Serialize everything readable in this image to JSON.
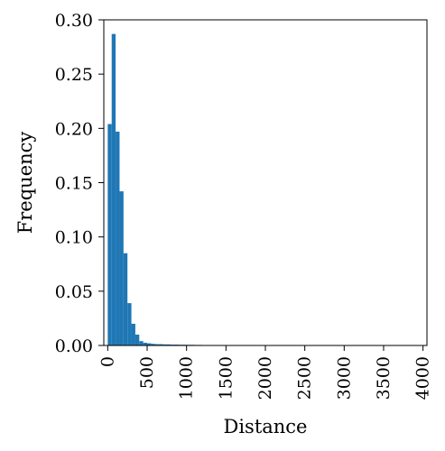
{
  "chart_data": {
    "type": "bar",
    "xlabel": "Distance",
    "ylabel": "Frequency",
    "xlim": [
      -50,
      4050
    ],
    "ylim": [
      0,
      0.3
    ],
    "bar_color": "#1f77b4",
    "bin_width": 50,
    "bins": [
      {
        "x0": 0,
        "x1": 50,
        "value": 0.204
      },
      {
        "x0": 50,
        "x1": 100,
        "value": 0.287
      },
      {
        "x0": 100,
        "x1": 150,
        "value": 0.197
      },
      {
        "x0": 150,
        "x1": 200,
        "value": 0.142
      },
      {
        "x0": 200,
        "x1": 250,
        "value": 0.085
      },
      {
        "x0": 250,
        "x1": 300,
        "value": 0.039
      },
      {
        "x0": 300,
        "x1": 350,
        "value": 0.02
      },
      {
        "x0": 350,
        "x1": 400,
        "value": 0.01
      },
      {
        "x0": 400,
        "x1": 450,
        "value": 0.004
      },
      {
        "x0": 450,
        "x1": 500,
        "value": 0.0025
      },
      {
        "x0": 500,
        "x1": 550,
        "value": 0.002
      },
      {
        "x0": 550,
        "x1": 600,
        "value": 0.0015
      },
      {
        "x0": 600,
        "x1": 650,
        "value": 0.0012
      },
      {
        "x0": 650,
        "x1": 700,
        "value": 0.0012
      },
      {
        "x0": 700,
        "x1": 750,
        "value": 0.001
      },
      {
        "x0": 750,
        "x1": 800,
        "value": 0.001
      },
      {
        "x0": 800,
        "x1": 850,
        "value": 0.0008
      },
      {
        "x0": 850,
        "x1": 900,
        "value": 0.0008
      },
      {
        "x0": 900,
        "x1": 950,
        "value": 0.0007
      },
      {
        "x0": 950,
        "x1": 1000,
        "value": 0.0007
      },
      {
        "x0": 1000,
        "x1": 1050,
        "value": 0.0006
      },
      {
        "x0": 1050,
        "x1": 1100,
        "value": 0.0006
      },
      {
        "x0": 1100,
        "x1": 1150,
        "value": 0.0005
      },
      {
        "x0": 1150,
        "x1": 1200,
        "value": 0.0005
      },
      {
        "x0": 1200,
        "x1": 1250,
        "value": 0.0004
      },
      {
        "x0": 1250,
        "x1": 1300,
        "value": 0.0004
      },
      {
        "x0": 1300,
        "x1": 1350,
        "value": 0.0003
      },
      {
        "x0": 1350,
        "x1": 1400,
        "value": 0.0002
      }
    ],
    "x_ticks": [
      {
        "value": 0,
        "label": "0"
      },
      {
        "value": 500,
        "label": "500"
      },
      {
        "value": 1000,
        "label": "1000"
      },
      {
        "value": 1500,
        "label": "1500"
      },
      {
        "value": 2000,
        "label": "2000"
      },
      {
        "value": 2500,
        "label": "2500"
      },
      {
        "value": 3000,
        "label": "3000"
      },
      {
        "value": 3500,
        "label": "3500"
      },
      {
        "value": 4000,
        "label": "4000"
      }
    ],
    "y_ticks": [
      {
        "value": 0.0,
        "label": "0.00"
      },
      {
        "value": 0.05,
        "label": "0.05"
      },
      {
        "value": 0.1,
        "label": "0.10"
      },
      {
        "value": 0.15,
        "label": "0.15"
      },
      {
        "value": 0.2,
        "label": "0.20"
      },
      {
        "value": 0.25,
        "label": "0.25"
      },
      {
        "value": 0.3,
        "label": "0.30"
      }
    ],
    "grid": false,
    "legend": "none"
  }
}
